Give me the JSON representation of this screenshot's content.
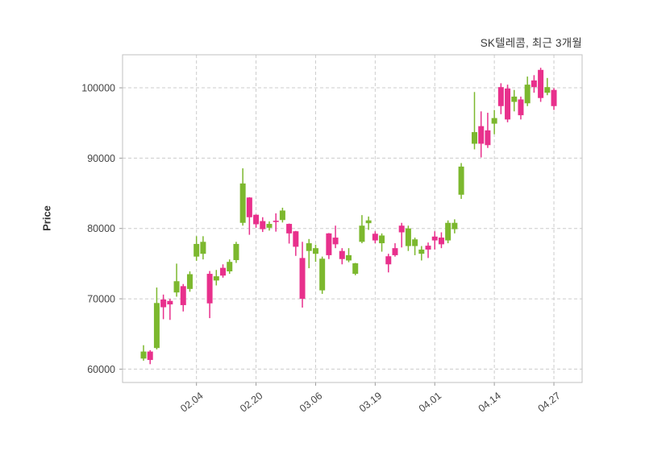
{
  "figure": {
    "background": "#ffffff"
  },
  "chart_data": {
    "type": "candlestick",
    "title": "SK텔레콤, 최근 3개월",
    "ylabel": "Price",
    "grid": true,
    "colors": {
      "up": "#7CB82E",
      "down": "#E8308C",
      "gridline": "#cccccc",
      "axis_border": "#c0c0c0",
      "tick_label": "#444444"
    },
    "ylim": [
      58100,
      104700
    ],
    "y_ticks": [
      60000,
      70000,
      80000,
      90000,
      100000
    ],
    "x_tick_slots": [
      8,
      17,
      26,
      35,
      44,
      53,
      62
    ],
    "x_tick_labels": [
      "02.04",
      "02.20",
      "03.06",
      "03.19",
      "04.01",
      "04.14",
      "04.27"
    ],
    "num_slots": 63,
    "candles_ohlc": [
      [
        61500,
        63400,
        61200,
        62500
      ],
      [
        62500,
        62700,
        60700,
        61300
      ],
      [
        63000,
        71600,
        62800,
        69400
      ],
      [
        69900,
        70600,
        67100,
        68800
      ],
      [
        69700,
        70000,
        67000,
        69200
      ],
      [
        70900,
        75000,
        70300,
        72500
      ],
      [
        71800,
        72100,
        68200,
        69100
      ],
      [
        71400,
        73900,
        71000,
        73500
      ],
      [
        76000,
        78900,
        75400,
        77800
      ],
      [
        76400,
        78900,
        75600,
        78100
      ],
      [
        73550,
        73950,
        67250,
        69350
      ],
      [
        72600,
        74100,
        71900,
        73200
      ],
      [
        74400,
        74900,
        73000,
        73300
      ],
      [
        73900,
        75600,
        73550,
        75250
      ],
      [
        75500,
        78100,
        75100,
        77800
      ],
      [
        80800,
        88550,
        80400,
        86400
      ],
      [
        84400,
        84450,
        79100,
        81600
      ],
      [
        81950,
        82000,
        80100,
        80600
      ],
      [
        81050,
        81600,
        79500,
        79900
      ],
      [
        80100,
        81000,
        79700,
        80650
      ],
      [
        81100,
        82150,
        79550,
        81000
      ],
      [
        81200,
        82950,
        80850,
        82550
      ],
      [
        80650,
        80700,
        77850,
        79300
      ],
      [
        79600,
        79650,
        76100,
        77400
      ],
      [
        75800,
        78100,
        68750,
        70000
      ],
      [
        76800,
        78500,
        74350,
        77900
      ],
      [
        76400,
        77700,
        75250,
        77200
      ],
      [
        71200,
        76000,
        70700,
        75700
      ],
      [
        79300,
        79350,
        75650,
        76200
      ],
      [
        78700,
        80400,
        77200,
        77750
      ],
      [
        76800,
        77200,
        74900,
        75650
      ],
      [
        75450,
        77200,
        75200,
        76200
      ],
      [
        73550,
        75100,
        73350,
        75050
      ],
      [
        78100,
        81900,
        77900,
        80400
      ],
      [
        80750,
        81700,
        79800,
        81150
      ],
      [
        79250,
        79600,
        77900,
        78300
      ],
      [
        77900,
        79300,
        76700,
        79000
      ],
      [
        76050,
        76400,
        73750,
        74900
      ],
      [
        77200,
        77900,
        76000,
        76200
      ],
      [
        80400,
        80800,
        77300,
        79450
      ],
      [
        77500,
        80400,
        76800,
        80000
      ],
      [
        77500,
        78700,
        76200,
        78450
      ],
      [
        76400,
        77500,
        75450,
        77000
      ],
      [
        77550,
        78000,
        75800,
        77000
      ],
      [
        78850,
        79600,
        77000,
        78300
      ],
      [
        78700,
        79450,
        77200,
        77750
      ],
      [
        78300,
        81150,
        77900,
        80800
      ],
      [
        79900,
        81300,
        79300,
        80800
      ],
      [
        84800,
        89300,
        84200,
        88800
      ],
      null,
      [
        92050,
        99400,
        91250,
        93700
      ],
      [
        94550,
        96650,
        90100,
        92050
      ],
      [
        93950,
        96450,
        91450,
        91850
      ],
      [
        94900,
        96850,
        93400,
        95700
      ],
      [
        100100,
        100650,
        96250,
        97400
      ],
      [
        99900,
        100450,
        95100,
        95500
      ],
      [
        98000,
        99700,
        96650,
        98750
      ],
      [
        98350,
        98750,
        95500,
        96100
      ],
      [
        97800,
        101600,
        97400,
        100450
      ],
      [
        101050,
        101800,
        99300,
        100100
      ],
      [
        102550,
        102850,
        98000,
        98550
      ],
      [
        99300,
        101400,
        98950,
        100100
      ],
      [
        99700,
        99950,
        96850,
        97400
      ]
    ]
  }
}
